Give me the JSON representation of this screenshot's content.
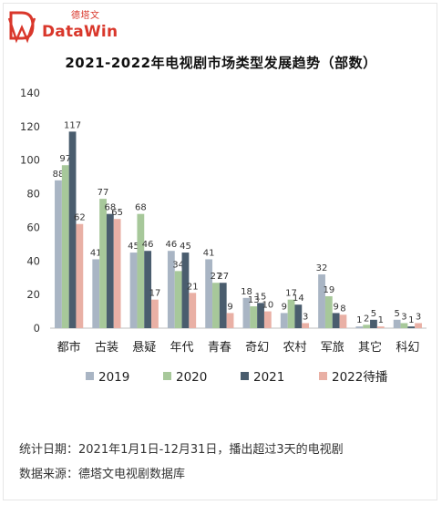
{
  "logo": {
    "cn": "德塔文",
    "en": "DataWin"
  },
  "chart_data": {
    "type": "bar",
    "title": "2021-2022年电视剧市场类型发展趋势（部数）",
    "categories": [
      "都市",
      "古装",
      "悬疑",
      "年代",
      "青春",
      "奇幻",
      "农村",
      "军旅",
      "其它",
      "科幻"
    ],
    "series": [
      {
        "name": "2019",
        "color": "#a9b5c4",
        "values": [
          88,
          41,
          45,
          46,
          41,
          18,
          9,
          32,
          1,
          5
        ]
      },
      {
        "name": "2020",
        "color": "#a7c89a",
        "values": [
          97,
          77,
          68,
          34,
          27,
          13,
          17,
          19,
          2,
          3
        ]
      },
      {
        "name": "2021",
        "color": "#4a5d6e",
        "values": [
          117,
          68,
          46,
          45,
          27,
          15,
          14,
          9,
          5,
          1
        ]
      },
      {
        "name": "2022待播",
        "color": "#e9b0a5",
        "values": [
          62,
          65,
          17,
          21,
          9,
          10,
          3,
          8,
          1,
          3
        ]
      }
    ],
    "ylim": [
      0,
      140
    ],
    "yticks": [
      0,
      20,
      40,
      60,
      80,
      100,
      120,
      140
    ],
    "grid": false,
    "legend": "bottom"
  },
  "footer": {
    "stat_date": "统计日期：2021年1月1日-12月31日，播出超过3天的电视剧",
    "source": "数据来源：德塔文电视剧数据库"
  }
}
